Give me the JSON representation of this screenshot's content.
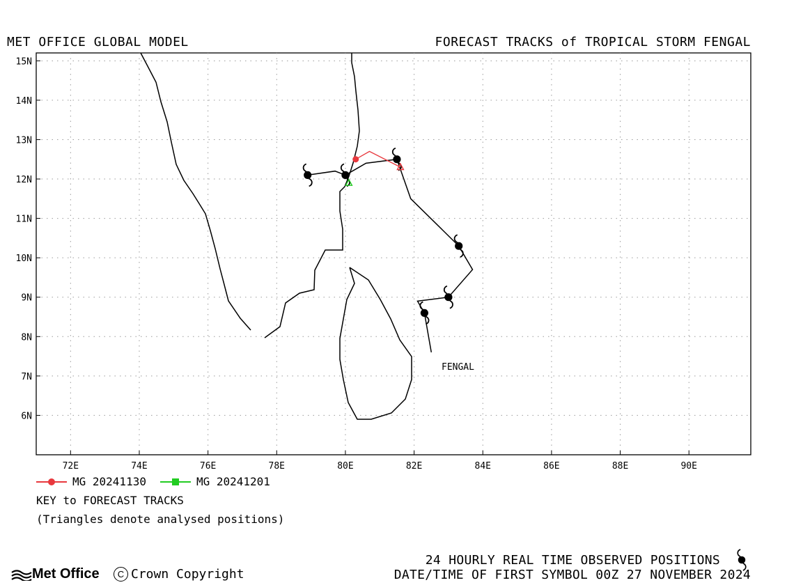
{
  "header": {
    "left_title": "MET OFFICE GLOBAL MODEL",
    "right_title": "FORECAST TRACKS of TROPICAL STORM FENGAL"
  },
  "map": {
    "lon_range": [
      71,
      91.8
    ],
    "lat_range": [
      5,
      15.2
    ],
    "lon_ticks": [
      "72E",
      "74E",
      "76E",
      "78E",
      "80E",
      "82E",
      "84E",
      "86E",
      "88E",
      "90E"
    ],
    "lat_ticks": [
      "15N",
      "14N",
      "13N",
      "12N",
      "11N",
      "10N",
      "9N",
      "8N",
      "7N",
      "6N"
    ],
    "grid": true,
    "storm_label": "FENGAL",
    "colors": {
      "observed": "#000000",
      "mg_20241130": "#e8383d",
      "mg_20241201": "#22cc22"
    }
  },
  "chart_data": {
    "type": "scatter",
    "series": [
      {
        "name": "24 HOURLY REAL TIME OBSERVED POSITIONS",
        "symbol": "cyclone-icon",
        "points": [
          {
            "lon": 82.3,
            "lat": 8.6
          },
          {
            "lon": 83.0,
            "lat": 9.0
          },
          {
            "lon": 83.3,
            "lat": 10.3
          },
          {
            "lon": 81.5,
            "lat": 12.5
          },
          {
            "lon": 80.0,
            "lat": 12.1
          },
          {
            "lon": 78.9,
            "lat": 12.1
          }
        ],
        "track": [
          [
            82.5,
            7.6
          ],
          [
            82.3,
            8.6
          ],
          [
            82.1,
            8.9
          ],
          [
            83.0,
            9.0
          ],
          [
            83.7,
            9.7
          ],
          [
            83.3,
            10.3
          ],
          [
            81.9,
            11.5
          ],
          [
            81.5,
            12.5
          ],
          [
            80.6,
            12.4
          ],
          [
            80.0,
            12.1
          ],
          [
            79.7,
            12.2
          ],
          [
            78.9,
            12.1
          ]
        ]
      },
      {
        "name": "MG 20241130",
        "track": [
          [
            80.3,
            12.5
          ],
          [
            80.7,
            12.7
          ],
          [
            81.6,
            12.3
          ]
        ],
        "analysed": [
          [
            81.6,
            12.3
          ]
        ]
      },
      {
        "name": "MG 20241201",
        "track": [
          [
            80.1,
            11.9
          ]
        ],
        "analysed": [
          [
            80.1,
            11.9
          ]
        ]
      }
    ]
  },
  "legend": {
    "items": [
      {
        "label": "MG 20241130",
        "color": "#e8383d"
      },
      {
        "label": "MG 20241201",
        "color": "#22cc22"
      }
    ],
    "key_title": "KEY to FORECAST TRACKS",
    "note": "(Triangles denote analysed positions)"
  },
  "footer": {
    "brand": "Met Office",
    "copyright": "Crown Copyright",
    "copyright_symbol": "C",
    "observed_label": "24 HOURLY REAL TIME OBSERVED POSITIONS",
    "datetime_label": "DATE/TIME OF FIRST SYMBOL 00Z 27 NOVEMBER 2024"
  }
}
